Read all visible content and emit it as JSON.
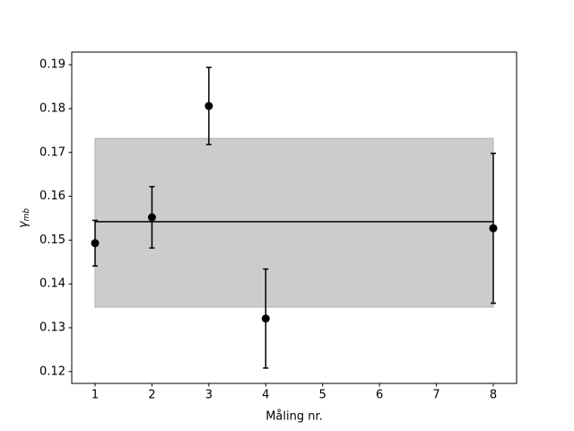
{
  "chart_data": {
    "type": "errorbar",
    "xlabel": "Måling nr.",
    "ylabel": "γ",
    "ylabel_sub": "mb",
    "xlim": [
      0.59,
      8.41
    ],
    "ylim": [
      0.1173,
      0.1929
    ],
    "xticks": [
      1,
      2,
      3,
      4,
      5,
      6,
      7,
      8
    ],
    "yticks": [
      0.12,
      0.13,
      0.14,
      0.15,
      0.16,
      0.17,
      0.18,
      0.19
    ],
    "x": [
      1,
      2,
      3,
      4,
      8
    ],
    "series": [
      {
        "color": "#000000",
        "values": [
          0.1493,
          0.1552,
          0.1806,
          0.1321,
          0.1527
        ],
        "errors": [
          0.0052,
          0.007,
          0.0088,
          0.0113,
          0.0171
        ]
      }
    ],
    "mean": {
      "value": 0.1542,
      "x": [
        1,
        8
      ],
      "color": "#000000"
    },
    "band": {
      "low": 0.1347,
      "high": 0.1732,
      "x": [
        1,
        8
      ],
      "color": "#cccccc"
    }
  }
}
